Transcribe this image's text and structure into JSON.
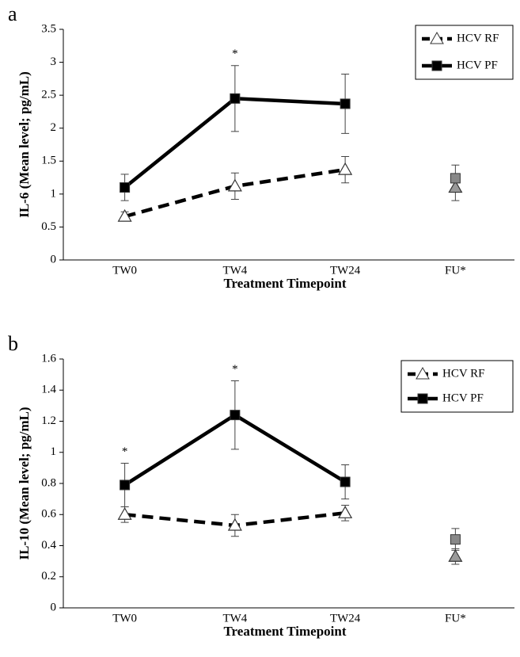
{
  "chart_data": [
    {
      "type": "line",
      "panel_label": "a",
      "ylabel": "IL-6 (Mean level; pg/mL)",
      "xlabel": "Treatment Timepoint",
      "categories": [
        "TW0",
        "TW4",
        "TW24",
        "FU*"
      ],
      "ylim": [
        0,
        3.5
      ],
      "yticks": [
        0,
        0.5,
        1,
        1.5,
        2,
        2.5,
        3,
        3.5
      ],
      "markers": [
        null,
        "*",
        null,
        null
      ],
      "connected_points": 3,
      "series": [
        {
          "name": "HCV RF",
          "color": "#000000",
          "dashed": true,
          "marker": "triangle",
          "marker_colors": [
            "#ffffff",
            "#ffffff",
            "#ffffff",
            "#999999"
          ],
          "values": [
            0.66,
            1.12,
            1.37,
            1.1
          ],
          "errors": [
            0.07,
            0.2,
            0.2,
            0.2
          ]
        },
        {
          "name": "HCV PF",
          "color": "#000000",
          "dashed": false,
          "marker": "square",
          "marker_colors": [
            "#000000",
            "#000000",
            "#000000",
            "#888888"
          ],
          "values": [
            1.1,
            2.45,
            2.37,
            1.24
          ],
          "errors": [
            0.2,
            0.5,
            0.45,
            0.2
          ]
        }
      ]
    },
    {
      "type": "line",
      "panel_label": "b",
      "ylabel": "IL-10 (Mean level; pg/mL)",
      "xlabel": "Treatment Timepoint",
      "categories": [
        "TW0",
        "TW4",
        "TW24",
        "FU*"
      ],
      "ylim": [
        0,
        1.6
      ],
      "yticks": [
        0,
        0.2,
        0.4,
        0.6,
        0.8,
        1,
        1.2,
        1.4,
        1.6
      ],
      "markers": [
        "*",
        "*",
        null,
        null
      ],
      "connected_points": 3,
      "series": [
        {
          "name": "HCV RF",
          "color": "#000000",
          "dashed": true,
          "marker": "triangle",
          "marker_colors": [
            "#ffffff",
            "#ffffff",
            "#ffffff",
            "#999999"
          ],
          "values": [
            0.6,
            0.53,
            0.61,
            0.33
          ],
          "errors": [
            0.05,
            0.07,
            0.05,
            0.05
          ]
        },
        {
          "name": "HCV PF",
          "color": "#000000",
          "dashed": false,
          "marker": "square",
          "marker_colors": [
            "#000000",
            "#000000",
            "#000000",
            "#888888"
          ],
          "values": [
            0.79,
            1.24,
            0.81,
            0.44
          ],
          "errors": [
            0.14,
            0.22,
            0.11,
            0.07
          ]
        }
      ]
    }
  ]
}
